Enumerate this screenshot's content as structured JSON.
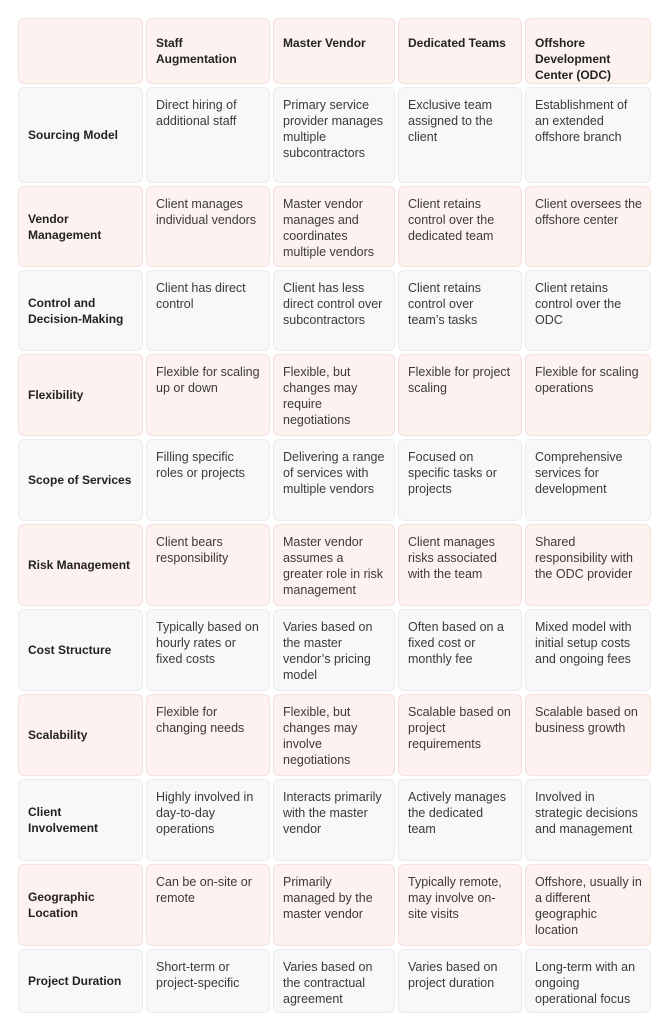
{
  "table": {
    "columns": [
      "Staff Augmentation",
      "Master Vendor",
      "Dedicated Teams",
      "Offshore Development Center (ODC)"
    ],
    "rows": [
      {
        "label": "Sourcing Model",
        "cells": [
          "Direct hiring of additional staff",
          "Primary service provider manages multiple subcontractors",
          "Exclusive team assigned to the client",
          "Establishment of an extended offshore branch"
        ]
      },
      {
        "label": "Vendor Management",
        "cells": [
          "Client manages individual vendors",
          "Master vendor manages and coordinates multiple vendors",
          "Client retains control over the dedicated team",
          "Client oversees the offshore center"
        ]
      },
      {
        "label": "Control and Decision-Making",
        "cells": [
          "Client has direct control",
          "Client has less direct control over subcontractors",
          "Client retains control over team’s tasks",
          "Client retains control over the ODC"
        ]
      },
      {
        "label": "Flexibility",
        "cells": [
          "Flexible for scaling up or down",
          "Flexible, but changes may require negotiations",
          "Flexible for project scaling",
          "Flexible for scaling operations"
        ]
      },
      {
        "label": "Scope of Services",
        "cells": [
          "Filling specific roles or projects",
          "Delivering a range of services with multiple vendors",
          "Focused on specific tasks or projects",
          "Comprehensive services for development"
        ]
      },
      {
        "label": "Risk Management",
        "cells": [
          "Client bears responsibility",
          "Master vendor assumes a greater role in risk management",
          "Client manages risks associated with the team",
          "Shared responsibility with the ODC provider"
        ]
      },
      {
        "label": "Cost Structure",
        "cells": [
          "Typically based on hourly rates or fixed costs",
          "Varies based on the master vendor’s pricing model",
          "Often based on a fixed cost or monthly fee",
          "Mixed model with initial setup costs and ongoing fees"
        ]
      },
      {
        "label": "Scalability",
        "cells": [
          "Flexible for changing needs",
          "Flexible, but changes may involve negotiations",
          "Scalable based on project requirements",
          "Scalable based on business growth"
        ]
      },
      {
        "label": "Client Involvement",
        "cells": [
          "Highly involved in day-to-day operations",
          "Interacts primarily with the master vendor",
          "Actively manages the dedicated team",
          "Involved in strategic decisions and management"
        ]
      },
      {
        "label": "Geographic Location",
        "cells": [
          "Can be on-site or remote",
          "Primarily managed by the master vendor",
          "Typically remote, may involve on-site visits",
          "Offshore, usually in a different geographic location"
        ]
      },
      {
        "label": "Project Duration",
        "cells": [
          "Short-term or project-specific",
          "Varies based on the contractual agreement",
          "Varies based on project duration",
          "Long-term with an ongoing operational focus"
        ]
      }
    ]
  }
}
